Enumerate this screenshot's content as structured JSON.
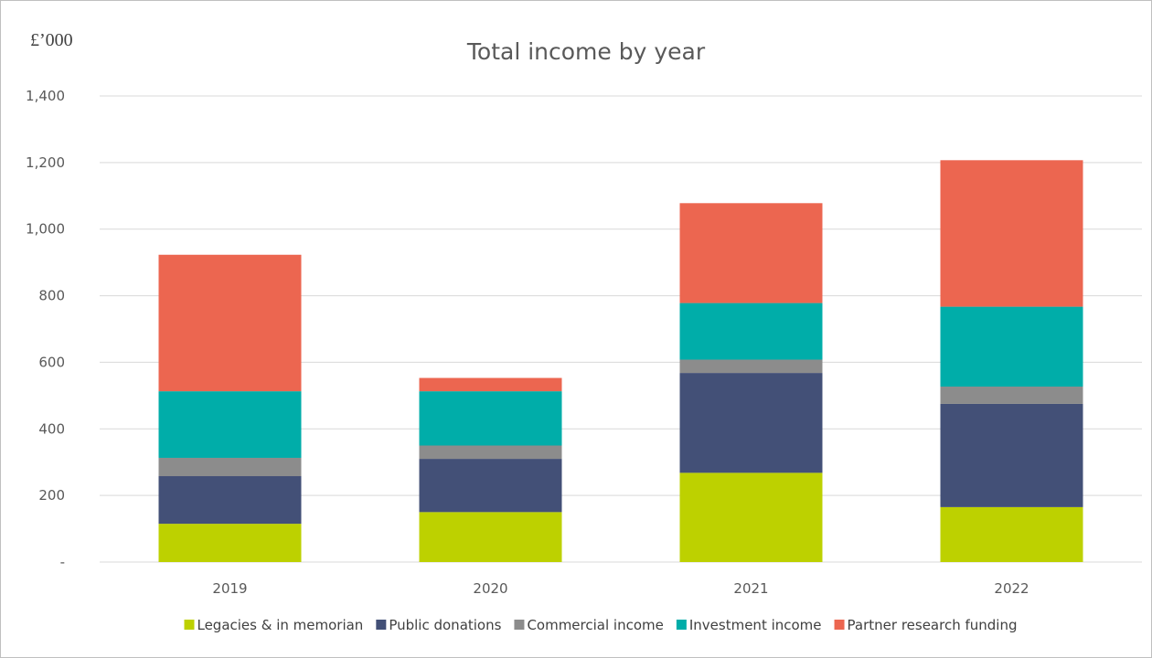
{
  "chart_data": {
    "type": "bar",
    "stacked": true,
    "title": "Total income by year",
    "unit_label": "£’000",
    "categories": [
      "2019",
      "2020",
      "2021",
      "2022"
    ],
    "series": [
      {
        "name": "Legacies & in memorian",
        "color": "#bdd100",
        "values": [
          115,
          150,
          268,
          165
        ]
      },
      {
        "name": "Public donations",
        "color": "#435077",
        "values": [
          143,
          160,
          300,
          310
        ]
      },
      {
        "name": "Commercial income",
        "color": "#8c8c8c",
        "values": [
          55,
          40,
          40,
          52
        ]
      },
      {
        "name": "Investment income",
        "color": "#00ada9",
        "values": [
          200,
          163,
          170,
          240
        ]
      },
      {
        "name": "Partner research funding",
        "color": "#ec6650",
        "values": [
          410,
          40,
          300,
          440
        ]
      }
    ],
    "ylim": [
      0,
      1400
    ],
    "yticks": [
      0,
      200,
      400,
      600,
      800,
      1000,
      1200,
      1400
    ],
    "ytick_labels": [
      "-",
      "200",
      "400",
      "600",
      "800",
      "1,000",
      "1,200",
      "1,400"
    ],
    "grid": true,
    "legend_position": "bottom"
  }
}
